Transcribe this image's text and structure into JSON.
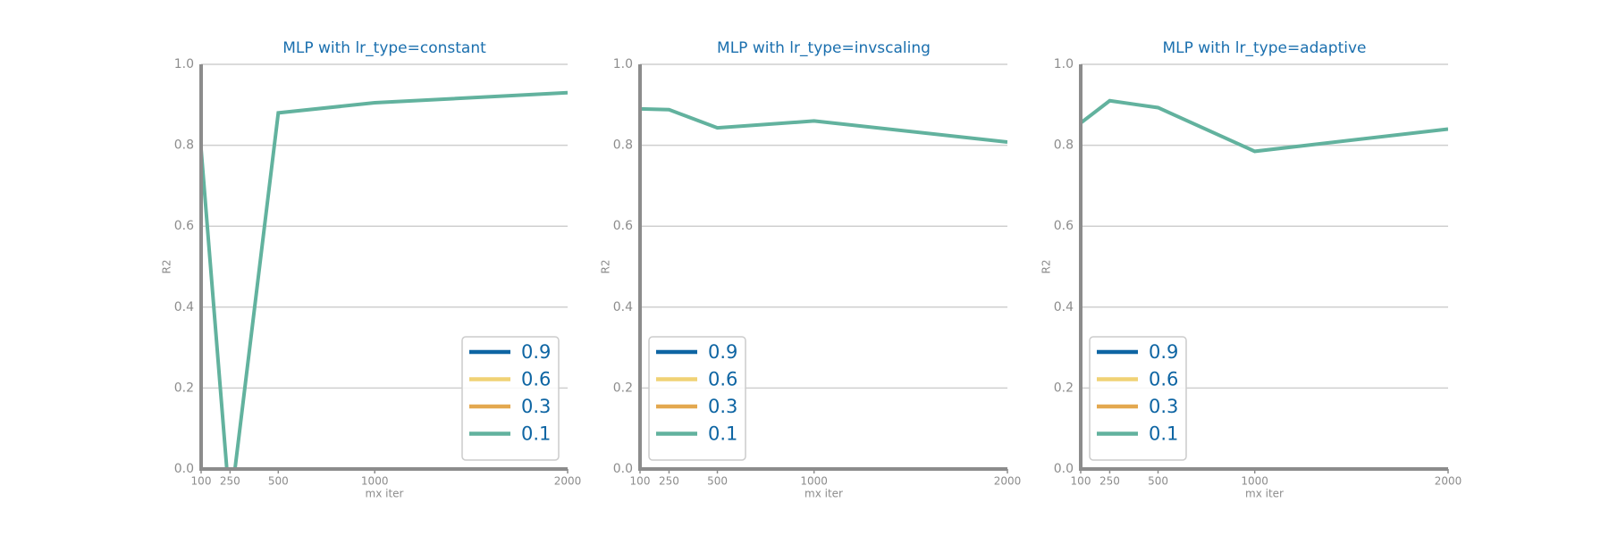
{
  "chart_data": [
    {
      "type": "line",
      "title": "MLP with lr_type=constant",
      "xlabel": "mx iter",
      "ylabel": "R2",
      "x": [
        100,
        250,
        500,
        1000,
        2000
      ],
      "series": [
        {
          "name": "0.9",
          "color": "#0e65a3",
          "values": [
            null,
            null,
            null,
            null,
            null
          ]
        },
        {
          "name": "0.6",
          "color": "#f0d275",
          "values": [
            null,
            null,
            null,
            null,
            null
          ]
        },
        {
          "name": "0.3",
          "color": "#e3a84f",
          "values": [
            null,
            null,
            null,
            null,
            null
          ]
        },
        {
          "name": "0.1",
          "color": "#62b29e",
          "values": [
            0.79,
            -0.1,
            0.88,
            0.905,
            0.93
          ]
        }
      ],
      "xlim": [
        100,
        2000
      ],
      "xticks": [
        100,
        250,
        500,
        1000,
        2000
      ],
      "ylim": [
        0,
        1
      ],
      "yticks": [
        {
          "value": 0,
          "label": "0.0"
        },
        {
          "value": 0.2,
          "label": "0.2"
        },
        {
          "value": 0.4,
          "label": "0.4"
        },
        {
          "value": 0.6,
          "label": "0.6"
        },
        {
          "value": 0.8,
          "label": "0.8"
        },
        {
          "value": 1,
          "label": "1.0"
        }
      ],
      "grid": true,
      "legend": "lower right"
    },
    {
      "type": "line",
      "title": "MLP with lr_type=invscaling",
      "xlabel": "mx iter",
      "ylabel": "R2",
      "x": [
        100,
        250,
        500,
        1000,
        2000
      ],
      "series": [
        {
          "name": "0.9",
          "color": "#0e65a3",
          "values": [
            null,
            null,
            null,
            null,
            null
          ]
        },
        {
          "name": "0.6",
          "color": "#f0d275",
          "values": [
            null,
            null,
            null,
            null,
            null
          ]
        },
        {
          "name": "0.3",
          "color": "#e3a84f",
          "values": [
            null,
            null,
            null,
            null,
            null
          ]
        },
        {
          "name": "0.1",
          "color": "#62b29e",
          "values": [
            0.89,
            0.888,
            0.843,
            0.86,
            0.808
          ]
        }
      ],
      "xlim": [
        100,
        2000
      ],
      "xticks": [
        100,
        250,
        500,
        1000,
        2000
      ],
      "ylim": [
        0,
        1
      ],
      "yticks": [
        {
          "value": 0,
          "label": "0.0"
        },
        {
          "value": 0.2,
          "label": "0.2"
        },
        {
          "value": 0.4,
          "label": "0.4"
        },
        {
          "value": 0.6,
          "label": "0.6"
        },
        {
          "value": 0.8,
          "label": "0.8"
        },
        {
          "value": 1,
          "label": "1.0"
        }
      ],
      "grid": true,
      "legend": "lower left"
    },
    {
      "type": "line",
      "title": "MLP with lr_type=adaptive",
      "xlabel": "mx iter",
      "ylabel": "R2",
      "x": [
        100,
        250,
        500,
        1000,
        2000
      ],
      "series": [
        {
          "name": "0.9",
          "color": "#0e65a3",
          "values": [
            null,
            null,
            null,
            null,
            null
          ]
        },
        {
          "name": "0.6",
          "color": "#f0d275",
          "values": [
            null,
            null,
            null,
            null,
            null
          ]
        },
        {
          "name": "0.3",
          "color": "#e3a84f",
          "values": [
            null,
            null,
            null,
            null,
            null
          ]
        },
        {
          "name": "0.1",
          "color": "#62b29e",
          "values": [
            0.855,
            0.91,
            0.893,
            0.785,
            0.84
          ]
        }
      ],
      "xlim": [
        100,
        2000
      ],
      "xticks": [
        100,
        250,
        500,
        1000,
        2000
      ],
      "ylim": [
        0,
        1
      ],
      "yticks": [
        {
          "value": 0,
          "label": "0.0"
        },
        {
          "value": 0.2,
          "label": "0.2"
        },
        {
          "value": 0.4,
          "label": "0.4"
        },
        {
          "value": 0.6,
          "label": "0.6"
        },
        {
          "value": 0.8,
          "label": "0.8"
        },
        {
          "value": 1,
          "label": "1.0"
        }
      ],
      "grid": true,
      "legend": "lower left"
    }
  ]
}
